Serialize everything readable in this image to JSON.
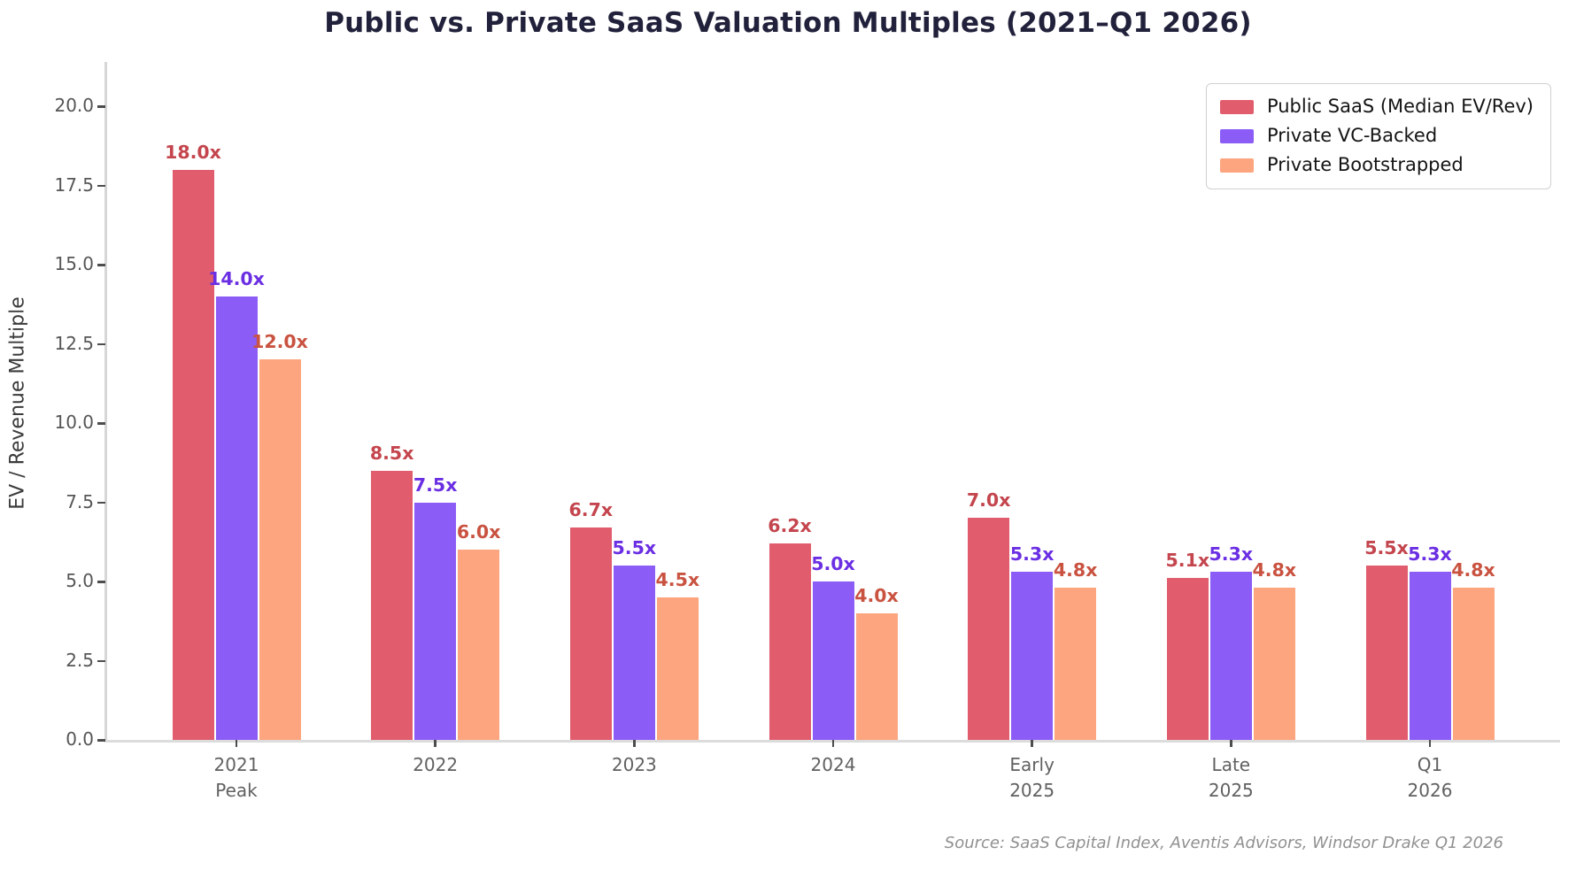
{
  "title": "Public vs. Private SaaS Valuation Multiples (2021–Q1 2026)",
  "source_note": "Source: SaaS Capital Index, Aventis Advisors, Windsor Drake Q1 2026",
  "chart_data": {
    "type": "bar",
    "title": "Public vs. Private SaaS Valuation Multiples (2021–Q1 2026)",
    "xlabel": "",
    "ylabel": "EV / Revenue Multiple",
    "categories": [
      "2021\nPeak",
      "2022",
      "2023",
      "2024",
      "Early\n2025",
      "Late\n2025",
      "Q1\n2026"
    ],
    "series": [
      {
        "name": "Public SaaS (Median EV/Rev)",
        "color": "#e15d6d",
        "label_color": "#c4454d",
        "values": [
          18.0,
          8.5,
          6.7,
          6.2,
          7.0,
          5.1,
          5.5
        ]
      },
      {
        "name": "Private VC-Backed",
        "color": "#8b5df6",
        "label_color": "#6b2fe3",
        "values": [
          14.0,
          7.5,
          5.5,
          5.0,
          5.3,
          5.3,
          5.3
        ]
      },
      {
        "name": "Private Bootstrapped",
        "color": "#fda57e",
        "label_color": "#c95240",
        "values": [
          12.0,
          6.0,
          4.5,
          4.0,
          4.8,
          4.8,
          4.8
        ]
      }
    ],
    "value_suffix": "x",
    "value_decimals": 1,
    "yticks": [
      0.0,
      2.5,
      5.0,
      7.5,
      10.0,
      12.5,
      15.0,
      17.5,
      20.0
    ],
    "ylim": [
      0,
      21.4
    ],
    "grid": false,
    "legend_position": "upper right",
    "colors": {
      "title": "#21213b",
      "tick_label": "#565656",
      "axis_label": "#3b3b3b",
      "spine": "#d6d6d6",
      "source": "#909090"
    }
  }
}
